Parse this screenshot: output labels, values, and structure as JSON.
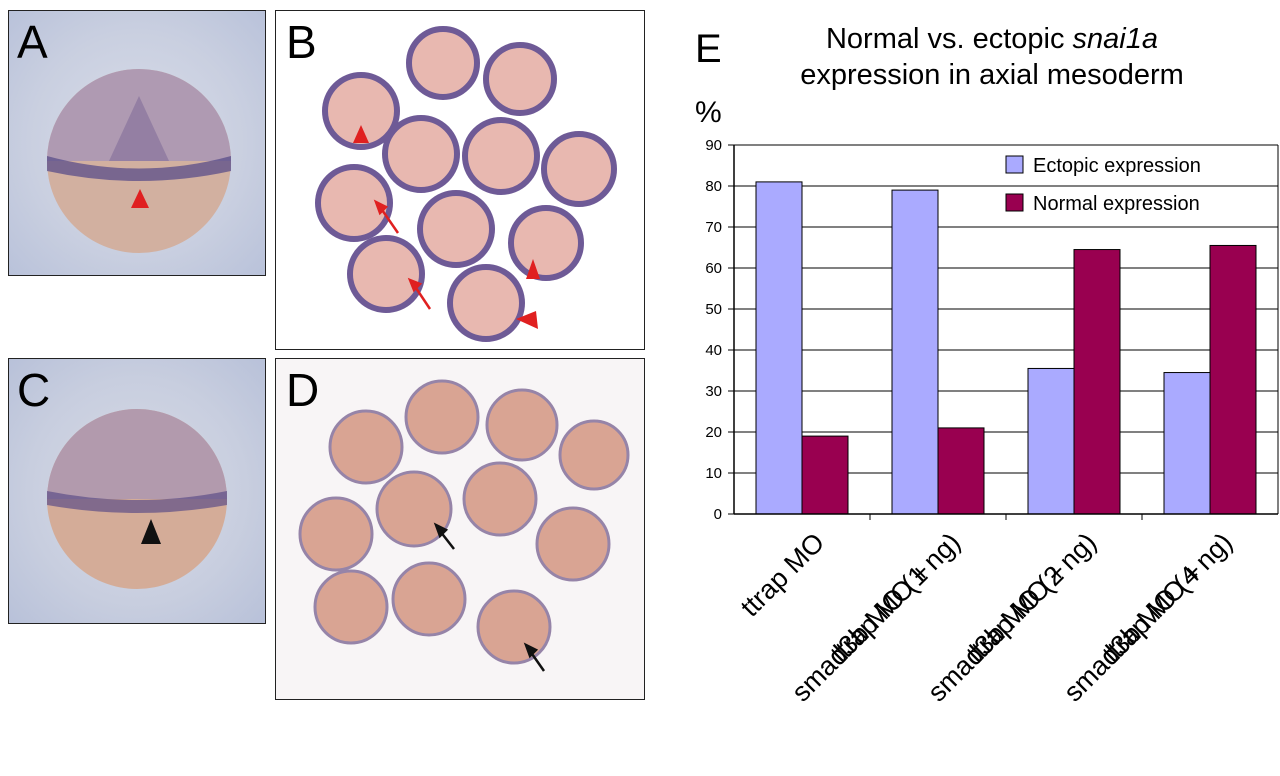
{
  "panels": {
    "a": {
      "letter": "A"
    },
    "b": {
      "letter": "B"
    },
    "c": {
      "letter": "C"
    },
    "d": {
      "letter": "D"
    }
  },
  "chart_panel_letter": "E",
  "chart_data": {
    "type": "bar",
    "title_line1_prefix": "Normal vs. ectopic ",
    "title_line1_italic": "snai1a",
    "title_line2": "expression in axial mesoderm",
    "ylabel": "%",
    "ylim": [
      0,
      90
    ],
    "yticks": [
      0,
      10,
      20,
      30,
      40,
      50,
      60,
      70,
      80,
      90
    ],
    "grid": true,
    "legend_position": "top-right",
    "categories": [
      [
        "ttrap MO"
      ],
      [
        "ttrap MO +",
        "smad3b MO (1 ng)"
      ],
      [
        "ttrap MO +",
        "smad3b MO (2 ng)"
      ],
      [
        "ttrap MO +",
        "smad3b MO (4 ng)"
      ]
    ],
    "series": [
      {
        "name": "Ectopic expression",
        "color": "#aaaaff",
        "values": [
          81,
          79,
          35.5,
          34.5
        ]
      },
      {
        "name": "Normal expression",
        "color": "#990050",
        "values": [
          19,
          21,
          64.5,
          65.5
        ]
      }
    ]
  }
}
